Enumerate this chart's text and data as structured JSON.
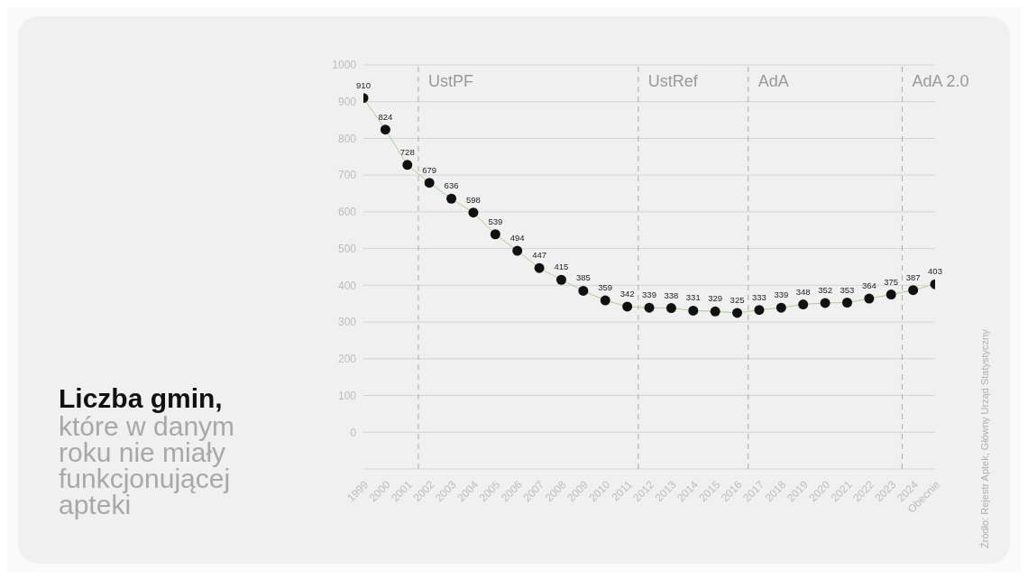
{
  "chart_data": {
    "type": "line",
    "title": "Liczba gmin,",
    "subtitle": "które w danym roku nie miały funkcjonującej apteki",
    "categories": [
      "1999",
      "2000",
      "2001",
      "2002",
      "2003",
      "2004",
      "2005",
      "2006",
      "2007",
      "2008",
      "2009",
      "2010",
      "2011",
      "2012",
      "2013",
      "2014",
      "2015",
      "2016",
      "2017",
      "2018",
      "2019",
      "2020",
      "2021",
      "2022",
      "2023",
      "2024",
      "Obecnie"
    ],
    "series": [
      {
        "color": "#a9d18e",
        "values": [
          910,
          824,
          728,
          679,
          636,
          598,
          539,
          494,
          447,
          415,
          385,
          359,
          342,
          339,
          338,
          331,
          329,
          325,
          333,
          339,
          348,
          352,
          353,
          364,
          375,
          387,
          403
        ]
      }
    ],
    "ylim": [
      -100,
      1000
    ],
    "yticks": [
      {
        "value": -100,
        "label": null
      },
      0,
      100,
      200,
      300,
      400,
      500,
      600,
      700,
      800,
      900,
      1000
    ],
    "grid": "y",
    "marker": "circle",
    "line_style": "solid",
    "data_labels": true,
    "ref_lines": [
      {
        "axis": "x",
        "value": "2002",
        "label": "UstPF",
        "color": "#aaaaaa",
        "line_style": "dashed"
      },
      {
        "axis": "x",
        "value": "2012",
        "label": "UstRef",
        "color": "#aaaaaa",
        "line_style": "dashed"
      },
      {
        "axis": "x",
        "value": "2017",
        "label": "AdA",
        "color": "#aaaaaa",
        "line_style": "dashed"
      },
      {
        "axis": "x",
        "value": "2024",
        "label": "AdA 2.0",
        "color": "#aaaaaa",
        "line_style": "dashed"
      }
    ],
    "annotations": [
      "Źródło: Rejestr Aptek, Główny Urząd Statystyczny"
    ]
  }
}
